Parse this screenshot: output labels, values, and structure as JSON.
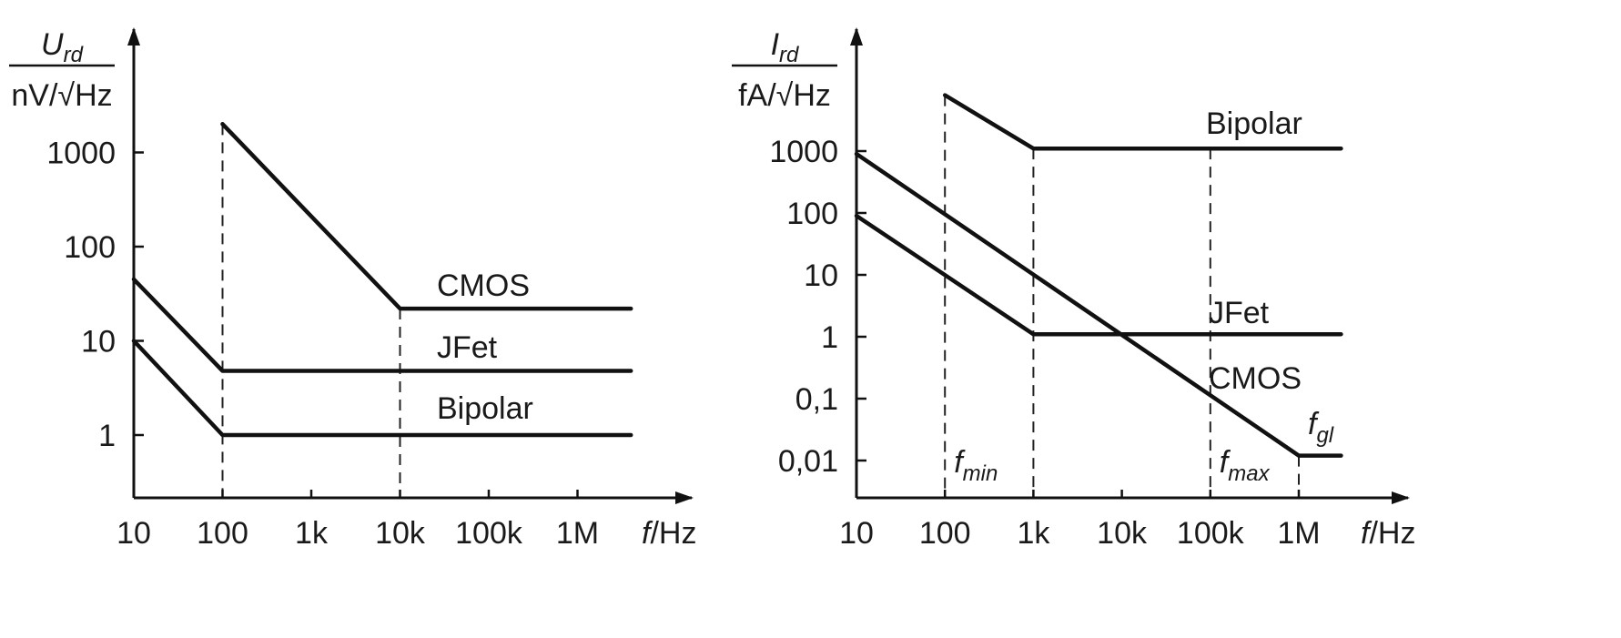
{
  "chart_data": [
    {
      "type": "line",
      "title": "",
      "xscale": "log",
      "yscale": "log",
      "xlim": [
        10,
        4000000
      ],
      "ylim": [
        0.2,
        10000
      ],
      "grid": false,
      "legend": "none",
      "ylabel": {
        "symbol": "U",
        "subscript": "rd",
        "unit": "nV/√Hz"
      },
      "xlabel": {
        "symbol": "f",
        "unit": "/Hz"
      },
      "xticks": [
        {
          "value": 10,
          "label": "10"
        },
        {
          "value": 100,
          "label": "100"
        },
        {
          "value": 1000,
          "label": "1k"
        },
        {
          "value": 10000,
          "label": "10k"
        },
        {
          "value": 100000,
          "label": "100k"
        },
        {
          "value": 1000000,
          "label": "1M"
        }
      ],
      "yticks": [
        {
          "value": 1,
          "label": "1"
        },
        {
          "value": 10,
          "label": "10"
        },
        {
          "value": 100,
          "label": "100"
        },
        {
          "value": 1000,
          "label": "1000"
        }
      ],
      "series": [
        {
          "name": "CMOS",
          "points": [
            [
              100,
              2000
            ],
            [
              10000,
              22
            ],
            [
              4000000,
              22
            ]
          ]
        },
        {
          "name": "JFet",
          "points": [
            [
              10,
              45
            ],
            [
              100,
              4.8
            ],
            [
              4000000,
              4.8
            ]
          ]
        },
        {
          "name": "Bipolar",
          "points": [
            [
              10,
              10
            ],
            [
              100,
              1
            ],
            [
              4000000,
              1
            ]
          ]
        }
      ],
      "guides_at_x": [
        100,
        10000
      ],
      "annotations": []
    },
    {
      "type": "line",
      "title": "",
      "xscale": "log",
      "yscale": "log",
      "xlim": [
        10,
        4000000
      ],
      "ylim": [
        0.003,
        10000
      ],
      "grid": false,
      "legend": "none",
      "ylabel": {
        "symbol": "I",
        "subscript": "rd",
        "unit": "fA/√Hz"
      },
      "xlabel": {
        "symbol": "f",
        "unit": "/Hz"
      },
      "xticks": [
        {
          "value": 10,
          "label": "10"
        },
        {
          "value": 100,
          "label": "100"
        },
        {
          "value": 1000,
          "label": "1k"
        },
        {
          "value": 10000,
          "label": "10k"
        },
        {
          "value": 100000,
          "label": "100k"
        },
        {
          "value": 1000000,
          "label": "1M"
        }
      ],
      "yticks": [
        {
          "value": 0.01,
          "label": "0,01"
        },
        {
          "value": 0.1,
          "label": "0,1"
        },
        {
          "value": 1,
          "label": "1"
        },
        {
          "value": 10,
          "label": "10"
        },
        {
          "value": 100,
          "label": "100"
        },
        {
          "value": 1000,
          "label": "1000"
        }
      ],
      "series": [
        {
          "name": "Bipolar",
          "points": [
            [
              1000,
              1100
            ],
            [
              3000000,
              1100
            ],
            [
              1000,
              1100
            ],
            [
              100,
              8000
            ]
          ]
        },
        {
          "name": "JFet",
          "points": [
            [
              10,
              90
            ],
            [
              1000,
              1.1
            ],
            [
              3000000,
              1.1
            ]
          ]
        },
        {
          "name": "CMOS",
          "points": [
            [
              10,
              900
            ],
            [
              1000000,
              0.012
            ],
            [
              3000000,
              0.012
            ]
          ]
        }
      ],
      "guides_at_x": [
        100,
        1000,
        100000,
        1000000
      ],
      "annotations": [
        {
          "symbol": "f",
          "subscript": "min",
          "x": 100
        },
        {
          "symbol": "f",
          "subscript": "max",
          "x": 100000
        },
        {
          "symbol": "f",
          "subscript": "gl",
          "x": 1000000
        }
      ]
    }
  ]
}
